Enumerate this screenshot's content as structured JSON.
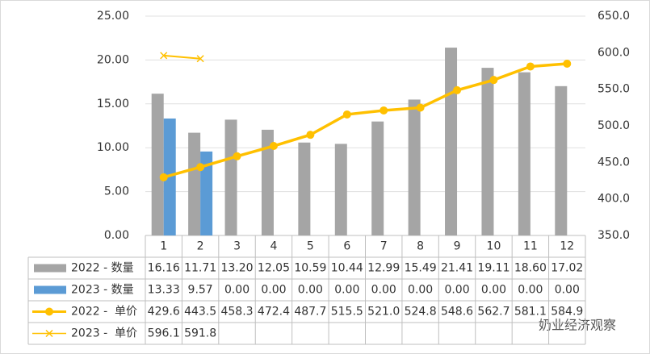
{
  "chart_data": {
    "type": "bar_line_table",
    "categories": [
      "1",
      "2",
      "3",
      "4",
      "5",
      "6",
      "7",
      "8",
      "9",
      "10",
      "11",
      "12"
    ],
    "series": [
      {
        "name": "2022 - 数量",
        "type": "bar",
        "color": "#a5a5a5",
        "values": [
          16.16,
          11.71,
          13.2,
          12.05,
          10.59,
          10.44,
          12.99,
          15.49,
          21.41,
          19.11,
          18.6,
          17.02
        ],
        "value_labels": [
          "16.16",
          "11.71",
          "13.20",
          "12.05",
          "10.59",
          "10.44",
          "12.99",
          "15.49",
          "21.41",
          "19.11",
          "18.60",
          "17.02"
        ]
      },
      {
        "name": "2023 - 数量",
        "type": "bar",
        "color": "#5b9bd5",
        "values": [
          13.33,
          9.57,
          0,
          0,
          0,
          0,
          0,
          0,
          0,
          0,
          0,
          0
        ],
        "value_labels": [
          "13.33",
          "9.57",
          "0.00",
          "0.00",
          "0.00",
          "0.00",
          "0.00",
          "0.00",
          "0.00",
          "0.00",
          "0.00",
          "0.00"
        ]
      },
      {
        "name": "2022 -  单价",
        "type": "line",
        "marker": "circle",
        "axis": "y2",
        "color": "#ffc000",
        "values": [
          429.6,
          443.5,
          458.3,
          472.4,
          487.7,
          515.5,
          521.0,
          524.8,
          548.6,
          562.7,
          581.1,
          584.9
        ],
        "value_labels": [
          "429.6",
          "443.5",
          "458.3",
          "472.4",
          "487.7",
          "515.5",
          "521.0",
          "524.8",
          "548.6",
          "562.7",
          "581.1",
          "584.9"
        ]
      },
      {
        "name": "2023 -  单价",
        "type": "line",
        "marker": "x",
        "axis": "y2",
        "color": "#ffc000",
        "values": [
          596.1,
          591.8,
          null,
          null,
          null,
          null,
          null,
          null,
          null,
          null,
          null,
          null
        ],
        "value_labels": [
          "596.1",
          "591.8",
          null,
          null,
          null,
          null,
          null,
          null,
          null,
          null,
          null,
          null
        ]
      }
    ],
    "ylim": [
      0,
      25
    ],
    "yticks": [
      {
        "value": 0,
        "label": "0.00"
      },
      {
        "value": 5,
        "label": "5.00"
      },
      {
        "value": 10,
        "label": "10.00"
      },
      {
        "value": 15,
        "label": "15.00"
      },
      {
        "value": 20,
        "label": "20.00"
      },
      {
        "value": 25,
        "label": "25.00"
      }
    ],
    "y2lim": [
      350,
      650
    ],
    "y2ticks": [
      {
        "value": 350,
        "label": "350.0"
      },
      {
        "value": 400,
        "label": "400.0"
      },
      {
        "value": 450,
        "label": "450.0"
      },
      {
        "value": 500,
        "label": "500.0"
      },
      {
        "value": 550,
        "label": "550.0"
      },
      {
        "value": 600,
        "label": "600.0"
      },
      {
        "value": 650,
        "label": "650.0"
      }
    ],
    "grid": true,
    "watermark": "奶业经济观察"
  }
}
